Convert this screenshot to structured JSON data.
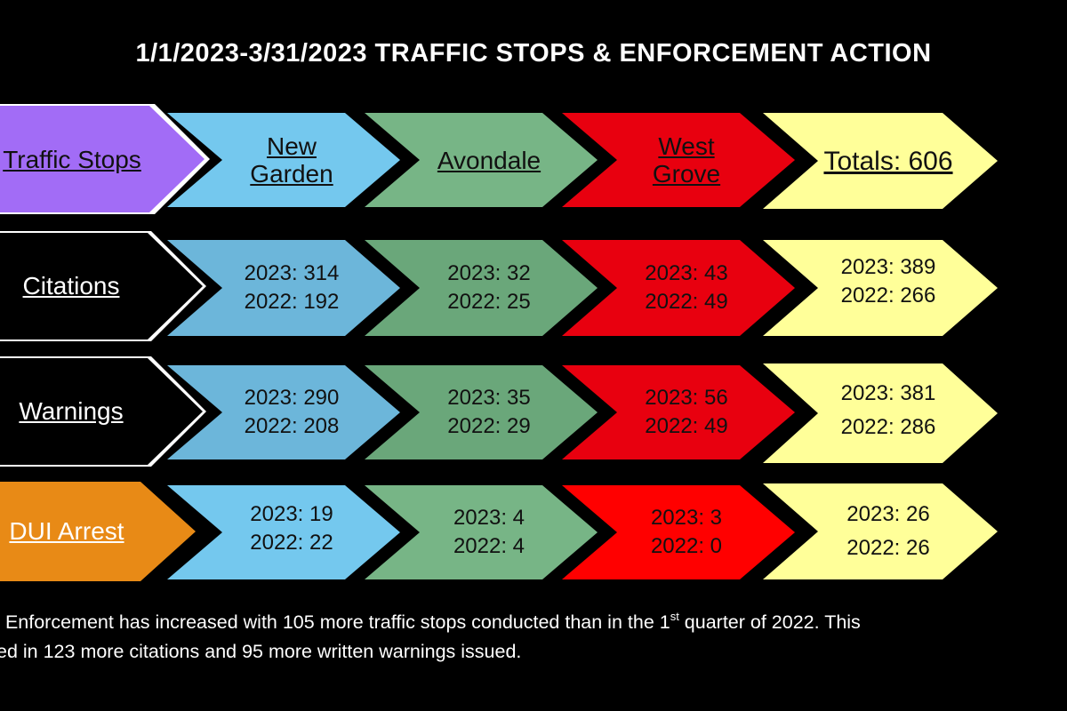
{
  "title": "1/1/2023-3/31/2023 TRAFFIC STOPS & ENFORCEMENT ACTION",
  "colors": {
    "purple": "#a26cf6",
    "blue": "#74c8ee",
    "blue_dark": "#6cb6da",
    "green": "#77b586",
    "green_dark": "#6aa77a",
    "red": "#e8000f",
    "red_bright": "#ff0000",
    "yellow": "#ffff99",
    "orange": "#e88a16",
    "black": "#000000"
  },
  "header": {
    "row_label": "Traffic Stops",
    "cols": [
      {
        "line1": "New",
        "line2": "Garden"
      },
      {
        "line1": "Avondale",
        "line2": ""
      },
      {
        "line1": "West",
        "line2": "Grove"
      }
    ],
    "totals": "Totals: 606"
  },
  "rows": [
    {
      "label": "Citations",
      "new_garden": {
        "y2023": "2023: 314",
        "y2022": "2022: 192"
      },
      "avondale": {
        "y2023": "2023: 32",
        "y2022": "2022: 25"
      },
      "west_grove": {
        "y2023": "2023: 43",
        "y2022": "2022: 49"
      },
      "totals": {
        "y2023": "2023: 389",
        "y2022": "2022: 266"
      }
    },
    {
      "label": "Warnings",
      "new_garden": {
        "y2023": "2023: 290",
        "y2022": "2022: 208"
      },
      "avondale": {
        "y2023": "2023: 35",
        "y2022": "2022: 29"
      },
      "west_grove": {
        "y2023": "2023: 56",
        "y2022": "2022: 49"
      },
      "totals": {
        "y2023": "2023: 381",
        "y2022": "2022: 286"
      }
    },
    {
      "label": "DUI Arrest",
      "new_garden": {
        "y2023": "2023: 19",
        "y2022": "2022: 22"
      },
      "avondale": {
        "y2023": "2023: 4",
        "y2022": "2022: 4"
      },
      "west_grove": {
        "y2023": "2023: 3",
        "y2022": "2022: 0"
      },
      "totals": {
        "y2023": "2023: 26",
        "y2022": "2022: 26"
      }
    }
  ],
  "footnote": {
    "line1_a": ": Enforcement has increased with 105 more traffic stops conducted than in the 1",
    "line1_sup": "st",
    "line1_b": " quarter of 2022. This",
    "line2": "ed in 123 more citations and 95 more written warnings issued."
  }
}
